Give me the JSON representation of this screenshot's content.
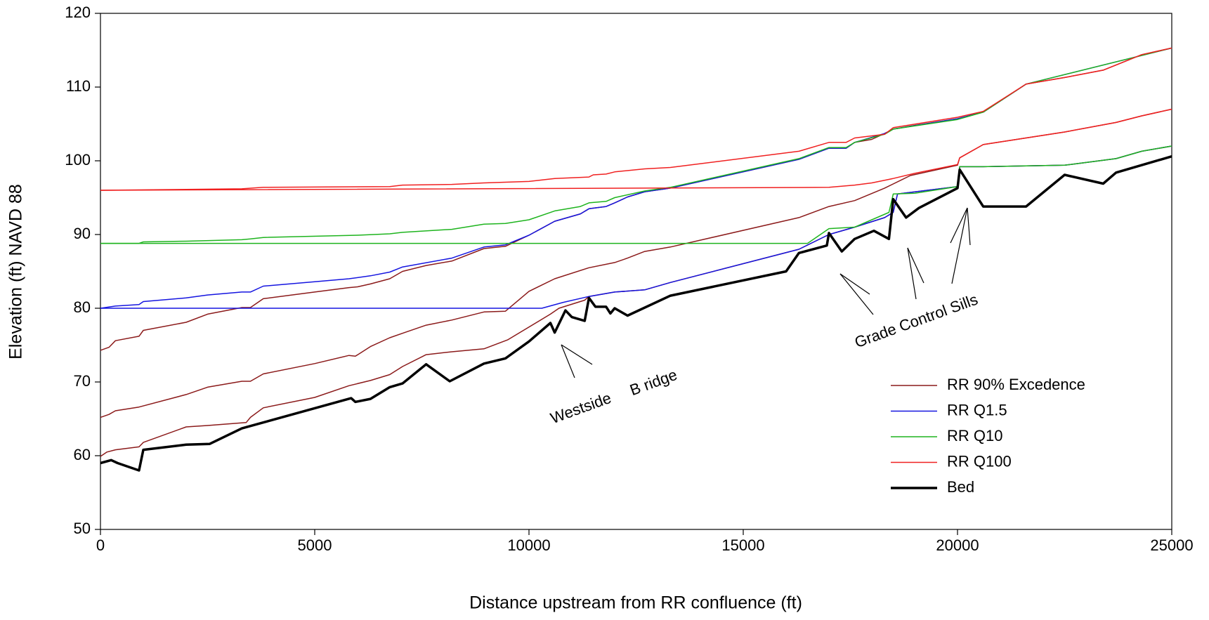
{
  "chart_data": {
    "type": "line",
    "x_label": "Distance upstream from RR confluence (ft)",
    "y_label": "Elevation (ft) NAVD 88",
    "xlim": [
      0,
      25000
    ],
    "xticks": [
      0,
      5000,
      10000,
      15000,
      20000,
      25000
    ],
    "ylim": [
      50,
      120
    ],
    "yticks": [
      50,
      60,
      70,
      80,
      90,
      100,
      110,
      120
    ],
    "legend": "lower right",
    "annotations": [
      "Westside",
      "B ridge",
      "Grade Control Sills"
    ],
    "series": [
      {
        "name": "RR 90% Excedence",
        "color": "#8b1a1a",
        "width": 1.5,
        "lines": [
          {
            "x": [
              0,
              150,
              350,
              900,
              1000,
              2000,
              2500,
              3400,
              3500,
              3800,
              5000,
              5800,
              6300,
              6750,
              7050,
              7600,
              8200,
              8950,
              9500,
              10500,
              10700,
              11300,
              11400,
              12000,
              12700,
              13300,
              16300,
              17000,
              17600,
              18300,
              18500,
              18600,
              20000,
              20050,
              20600,
              22500,
              23700,
              24300,
              25000
            ],
            "values": [
              59.9,
              60.5,
              60.8,
              61.2,
              61.8,
              63.9,
              64.1,
              64.5,
              65.2,
              66.5,
              67.9,
              69.5,
              70.2,
              71,
              72.1,
              73.7,
              74.1,
              74.5,
              75.7,
              79.2,
              80,
              81.1,
              81.6,
              82.2,
              82.5,
              83.5,
              88,
              90,
              91,
              92.3,
              93,
              95.5,
              96.5,
              99.2,
              99.2,
              99.4,
              100.3,
              101.3,
              102
            ]
          },
          {
            "x": [
              0,
              200,
              350,
              900,
              2000,
              2500,
              3300,
              3500,
              3800,
              5000,
              5800,
              5950,
              6300,
              6750,
              7100,
              7600,
              8200,
              8950,
              9450,
              10000,
              10600,
              11400,
              12000,
              12300,
              12700,
              13300,
              16300,
              17000,
              17600,
              18300,
              18900,
              20000,
              20050,
              20600,
              22500,
              23700,
              24300,
              25000
            ],
            "values": [
              65.2,
              65.6,
              66.1,
              66.6,
              68.3,
              69.3,
              70.1,
              70.1,
              71.1,
              72.5,
              73.6,
              73.5,
              74.8,
              76,
              76.7,
              77.7,
              78.4,
              79.5,
              79.6,
              82.3,
              84,
              85.5,
              86.2,
              86.8,
              87.7,
              88.3,
              92.3,
              93.8,
              94.6,
              96.3,
              98,
              99.4,
              100.4,
              102.2,
              103.9,
              105.2,
              106.1,
              107
            ]
          },
          {
            "x": [
              0,
              200,
              350,
              900,
              1000,
              2000,
              2500,
              3300,
              3500,
              3800,
              5000,
              5800,
              6000,
              6300,
              6750,
              7050,
              7600,
              8200,
              8950,
              9450,
              10000,
              10600,
              11200,
              11400,
              11800,
              12000,
              12300,
              12700,
              13300,
              16300,
              17000,
              17400,
              17600,
              18000,
              18300,
              18500,
              19000,
              20000,
              20600,
              21600,
              22500,
              23400,
              24300,
              25000
            ],
            "values": [
              74.3,
              74.7,
              75.6,
              76.2,
              77,
              78.1,
              79.2,
              80.1,
              80.1,
              81.3,
              82.2,
              82.8,
              82.9,
              83.3,
              84,
              85,
              85.8,
              86.4,
              88.1,
              88.4,
              89.9,
              91.8,
              92.8,
              93.5,
              93.8,
              94.3,
              95.1,
              95.8,
              96.3,
              100.2,
              101.7,
              101.7,
              102.5,
              102.9,
              103.7,
              104.3,
              104.8,
              105.7,
              106.6,
              110.4,
              111.3,
              112.3,
              114.4,
              115.3
            ]
          }
        ]
      },
      {
        "name": "RR Q1.5",
        "color": "#1515e0",
        "width": 1.5,
        "lines": [
          {
            "x": [
              0,
              10300,
              10800,
              11400,
              12000,
              12700,
              13300,
              16300,
              17000,
              17600,
              18300,
              18500,
              18600,
              20000,
              20050,
              20600,
              22500,
              23700,
              24300,
              25000
            ],
            "values": [
              80,
              80,
              80.8,
              81.6,
              82.2,
              82.5,
              83.5,
              88,
              90,
              91,
              92.3,
              93,
              95.5,
              96.5,
              99.2,
              99.2,
              99.4,
              100.3,
              101.3,
              102
            ]
          },
          {
            "x": [
              0,
              350,
              900,
              1000,
              2000,
              2500,
              3300,
              3500,
              3800,
              5000,
              5800,
              6300,
              6750,
              7050,
              8200,
              8950,
              9450,
              10000,
              10600,
              11200,
              11400,
              11800,
              12000,
              12300,
              12700,
              13300,
              16300,
              17000,
              17400,
              17600,
              18300,
              18500,
              20000,
              20600,
              21600,
              25000
            ],
            "values": [
              80,
              80.3,
              80.5,
              80.9,
              81.4,
              81.8,
              82.2,
              82.2,
              83,
              83.6,
              84,
              84.4,
              84.9,
              85.6,
              86.8,
              88.3,
              88.6,
              89.9,
              91.8,
              92.8,
              93.5,
              93.8,
              94.3,
              95.1,
              95.8,
              96.3,
              100.2,
              101.7,
              101.7,
              102.5,
              103.7,
              104.3,
              105.7,
              106.6,
              110.4,
              115.3
            ]
          }
        ]
      },
      {
        "name": "RR Q10",
        "color": "#1eb41e",
        "width": 1.5,
        "lines": [
          {
            "x": [
              0,
              16500,
              17000,
              17600,
              18000,
              18400,
              18500,
              19000,
              20000,
              20050,
              20600,
              22500,
              23700,
              24300,
              25000
            ],
            "values": [
              88.8,
              88.8,
              90.8,
              91,
              92,
              93,
              95.5,
              95.6,
              96.5,
              99.2,
              99.2,
              99.4,
              100.3,
              101.3,
              102
            ]
          },
          {
            "x": [
              0,
              900,
              1000,
              2000,
              3300,
              3500,
              3800,
              6000,
              6750,
              7050,
              8200,
              8950,
              9450,
              10000,
              10600,
              11200,
              11400,
              11800,
              12000,
              12700,
              13300,
              16300,
              17000,
              17400,
              17600,
              18300,
              18500,
              20000,
              20600,
              21600,
              25000
            ],
            "values": [
              88.8,
              88.8,
              89,
              89.1,
              89.3,
              89.4,
              89.6,
              89.9,
              90.1,
              90.3,
              90.7,
              91.4,
              91.5,
              92,
              93.2,
              93.8,
              94.3,
              94.5,
              95,
              95.9,
              96.4,
              100.3,
              101.8,
              101.8,
              102.5,
              103.6,
              104.3,
              105.6,
              106.6,
              110.4,
              115.3
            ]
          }
        ]
      },
      {
        "name": "RR Q100",
        "color": "#f02020",
        "width": 1.5,
        "lines": [
          {
            "x": [
              0,
              17000,
              17600,
              18000,
              18500,
              19000,
              20000,
              20050,
              20600,
              22500,
              23700,
              24300,
              25000
            ],
            "values": [
              96,
              96.4,
              96.7,
              97,
              97.6,
              98.3,
              99.5,
              100.4,
              102.2,
              103.9,
              105.2,
              106.1,
              107
            ]
          },
          {
            "x": [
              0,
              3300,
              3800,
              6750,
              7050,
              8200,
              8950,
              10000,
              10600,
              11400,
              11500,
              11800,
              12000,
              12700,
              13300,
              16300,
              17000,
              17400,
              17600,
              18300,
              18500,
              20000,
              20600,
              21600,
              22500,
              23400,
              24300,
              25000
            ],
            "values": [
              96,
              96.2,
              96.4,
              96.5,
              96.7,
              96.8,
              97,
              97.2,
              97.6,
              97.8,
              98.1,
              98.2,
              98.5,
              98.9,
              99.1,
              101.3,
              102.5,
              102.5,
              103.1,
              103.6,
              104.5,
              105.9,
              106.7,
              110.4,
              111.3,
              112.3,
              114.4,
              115.3
            ]
          }
        ]
      },
      {
        "name": "Bed",
        "color": "#000000",
        "width": 3.5,
        "lines": [
          {
            "x": [
              0,
              250,
              400,
              900,
              1000,
              2000,
              2550,
              3300,
              5850,
              5950,
              6300,
              6750,
              7050,
              7600,
              8150,
              8950,
              9450,
              10000,
              10500,
              10600,
              10850,
              11000,
              11300,
              11400,
              11550,
              11800,
              11900,
              12000,
              12300,
              13300,
              16000,
              16300,
              16950,
              17000,
              17300,
              17600,
              18050,
              18400,
              18500,
              18800,
              19100,
              20000,
              20050,
              20600,
              21600,
              22500,
              23400,
              23700,
              25000
            ],
            "values": [
              59,
              59.4,
              59,
              58,
              60.8,
              61.5,
              61.6,
              63.7,
              67.8,
              67.3,
              67.7,
              69.3,
              69.8,
              72.4,
              70.1,
              72.5,
              73.2,
              75.5,
              78,
              76.7,
              79.7,
              78.8,
              78.3,
              81.4,
              80.2,
              80.2,
              79.3,
              80,
              79,
              81.7,
              85,
              87.5,
              88.5,
              90.2,
              87.7,
              89.4,
              90.5,
              89.4,
              94.8,
              92.3,
              93.6,
              96.3,
              98.8,
              93.8,
              93.8,
              98.1,
              96.9,
              98.4,
              100.6
            ]
          }
        ]
      }
    ]
  }
}
